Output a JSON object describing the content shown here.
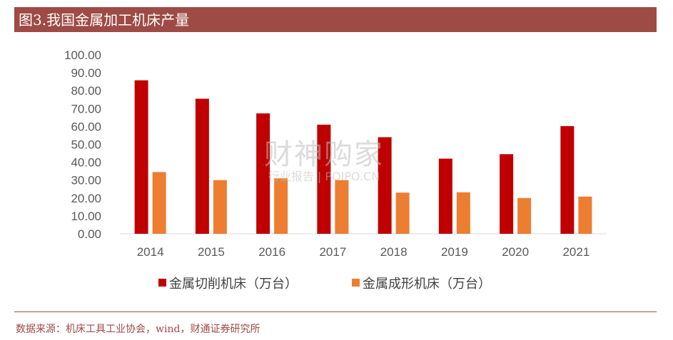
{
  "header": {
    "title": "图3.我国金属加工机床产量"
  },
  "footer": {
    "source": "数据来源：机床工具工业协会，wind，财通证券研究所"
  },
  "watermark": {
    "main": "财神购家",
    "sub": "行业报告 | POIPO.CN"
  },
  "colors": {
    "title_bg": "#9e4a45",
    "series1": "#c00000",
    "series2": "#ed7d31"
  },
  "chart_data": {
    "type": "bar",
    "title": "",
    "xlabel": "",
    "ylabel": "",
    "categories": [
      "2014",
      "2015",
      "2016",
      "2017",
      "2018",
      "2019",
      "2020",
      "2021"
    ],
    "series": [
      {
        "name": "金属切削机床（万台）",
        "values": [
          85.8,
          75.5,
          67.3,
          61.0,
          54.0,
          42.0,
          44.5,
          60.2
        ]
      },
      {
        "name": "金属成形机床（万台）",
        "values": [
          34.5,
          30.0,
          31.0,
          30.0,
          23.0,
          23.2,
          20.0,
          20.8
        ]
      }
    ],
    "ylim": [
      0,
      100
    ],
    "yticks": [
      "0.00",
      "10.00",
      "20.00",
      "30.00",
      "40.00",
      "50.00",
      "60.00",
      "70.00",
      "80.00",
      "90.00",
      "100.00"
    ],
    "legend": "bottom",
    "grid": false
  }
}
